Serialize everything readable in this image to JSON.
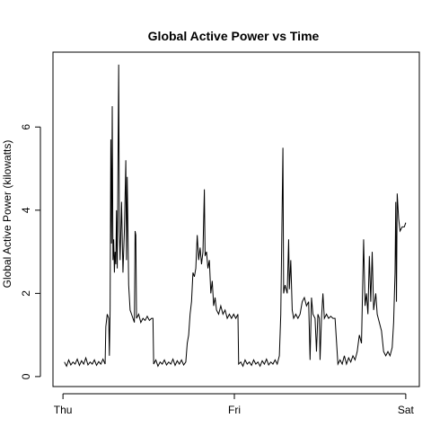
{
  "chart_data": {
    "type": "line",
    "title": "Global Active Power vs Time",
    "y_label": "Global Active Power (kilowatts)",
    "xlim": [
      -1.4,
      49.9
    ],
    "ylim": [
      -0.24,
      7.8
    ],
    "xticks": [
      {
        "value": 0,
        "label": "Thu"
      },
      {
        "value": 24,
        "label": "Fri"
      },
      {
        "value": 48,
        "label": "Sat"
      }
    ],
    "yticks": [
      0,
      2,
      4,
      6
    ],
    "grid": false,
    "series": [
      {
        "name": "Global Active Power",
        "color": "#000000",
        "x": [
          0.2,
          0.5,
          0.8,
          1.1,
          1.4,
          1.7,
          2.0,
          2.3,
          2.6,
          2.9,
          3.2,
          3.5,
          3.8,
          4.1,
          4.4,
          4.7,
          5.0,
          5.3,
          5.6,
          5.9,
          6.0,
          6.2,
          6.4,
          6.5,
          6.6,
          6.7,
          6.8,
          6.9,
          7.0,
          7.1,
          7.2,
          7.3,
          7.4,
          7.5,
          7.6,
          7.8,
          7.9,
          8.0,
          8.2,
          8.4,
          8.6,
          8.8,
          8.9,
          9.0,
          9.2,
          9.4,
          9.6,
          9.8,
          10.0,
          10.1,
          10.2,
          10.3,
          10.6,
          10.9,
          11.2,
          11.5,
          11.8,
          12.1,
          12.4,
          12.6,
          12.7,
          13.0,
          13.3,
          13.6,
          13.9,
          14.2,
          14.5,
          14.8,
          15.1,
          15.4,
          15.7,
          16.0,
          16.3,
          16.6,
          16.9,
          17.2,
          17.4,
          17.6,
          17.8,
          18.0,
          18.2,
          18.4,
          18.6,
          18.8,
          19.0,
          19.2,
          19.4,
          19.6,
          19.8,
          19.9,
          20.1,
          20.3,
          20.5,
          20.7,
          20.9,
          21.1,
          21.3,
          21.5,
          21.8,
          22.1,
          22.4,
          22.7,
          23.0,
          23.3,
          23.6,
          23.9,
          24.2,
          24.5,
          24.6,
          24.9,
          25.2,
          25.5,
          25.8,
          26.1,
          26.4,
          26.7,
          27.0,
          27.3,
          27.6,
          27.9,
          28.2,
          28.5,
          28.8,
          29.1,
          29.4,
          29.7,
          30.0,
          30.3,
          30.5,
          30.8,
          30.9,
          31.1,
          31.4,
          31.6,
          31.7,
          31.9,
          32.1,
          32.3,
          32.6,
          32.9,
          33.2,
          33.5,
          33.8,
          34.1,
          34.4,
          34.6,
          34.8,
          35.0,
          35.3,
          35.5,
          35.7,
          35.9,
          36.0,
          36.2,
          36.4,
          36.6,
          36.9,
          37.2,
          37.5,
          37.8,
          38.1,
          38.5,
          38.8,
          39.1,
          39.4,
          39.7,
          40.0,
          40.3,
          40.6,
          40.9,
          41.2,
          41.5,
          41.8,
          42.1,
          42.3,
          42.5,
          42.7,
          42.9,
          43.1,
          43.3,
          43.5,
          43.8,
          44.0,
          44.3,
          44.6,
          44.9,
          45.2,
          45.5,
          45.8,
          46.1,
          46.3,
          46.5,
          46.6,
          46.7,
          46.8,
          47.0,
          47.2,
          47.5,
          47.8,
          48.0
        ],
        "values": [
          0.35,
          0.25,
          0.4,
          0.28,
          0.35,
          0.3,
          0.42,
          0.27,
          0.38,
          0.3,
          0.45,
          0.28,
          0.35,
          0.3,
          0.4,
          0.27,
          0.36,
          0.3,
          0.42,
          0.3,
          1.2,
          1.5,
          1.4,
          0.5,
          1.6,
          5.7,
          3.2,
          6.5,
          2.8,
          3.3,
          2.5,
          3.0,
          2.7,
          4.0,
          2.6,
          7.5,
          3.5,
          2.8,
          4.2,
          2.5,
          3.5,
          5.2,
          2.8,
          4.8,
          2.2,
          1.6,
          1.5,
          1.4,
          1.3,
          3.5,
          3.4,
          1.4,
          1.5,
          1.3,
          1.4,
          1.35,
          1.45,
          1.35,
          1.4,
          1.4,
          0.3,
          0.4,
          0.25,
          0.35,
          0.3,
          0.4,
          0.28,
          0.35,
          0.3,
          0.42,
          0.27,
          0.38,
          0.3,
          0.4,
          0.28,
          0.35,
          0.8,
          1.0,
          1.5,
          1.8,
          2.5,
          2.4,
          2.6,
          3.4,
          2.8,
          3.1,
          2.7,
          3.0,
          4.5,
          2.9,
          3.0,
          2.6,
          2.8,
          2.0,
          2.3,
          1.7,
          1.9,
          1.6,
          1.5,
          1.7,
          1.5,
          1.6,
          1.4,
          1.5,
          1.4,
          1.5,
          1.4,
          1.5,
          0.3,
          0.35,
          0.25,
          0.4,
          0.3,
          0.35,
          0.27,
          0.4,
          0.3,
          0.35,
          0.25,
          0.38,
          0.3,
          0.42,
          0.28,
          0.35,
          0.3,
          0.4,
          0.3,
          0.5,
          1.5,
          5.5,
          2.0,
          2.2,
          2.0,
          3.3,
          2.1,
          2.8,
          1.6,
          1.4,
          1.5,
          1.4,
          1.5,
          1.8,
          1.9,
          1.7,
          1.8,
          0.4,
          1.9,
          1.5,
          1.4,
          0.6,
          1.5,
          1.4,
          0.4,
          1.4,
          2.0,
          1.4,
          1.5,
          1.4,
          1.45,
          1.4,
          1.4,
          0.3,
          0.4,
          0.3,
          0.5,
          0.3,
          0.45,
          0.35,
          0.5,
          0.4,
          0.6,
          1.0,
          0.8,
          3.3,
          1.7,
          2.0,
          1.5,
          2.9,
          1.8,
          3.0,
          1.6,
          2.0,
          1.5,
          1.3,
          1.1,
          0.6,
          0.5,
          0.6,
          0.5,
          0.7,
          1.3,
          2.5,
          4.2,
          1.8,
          4.4,
          3.8,
          3.5,
          3.6,
          3.6,
          3.7
        ]
      }
    ]
  }
}
